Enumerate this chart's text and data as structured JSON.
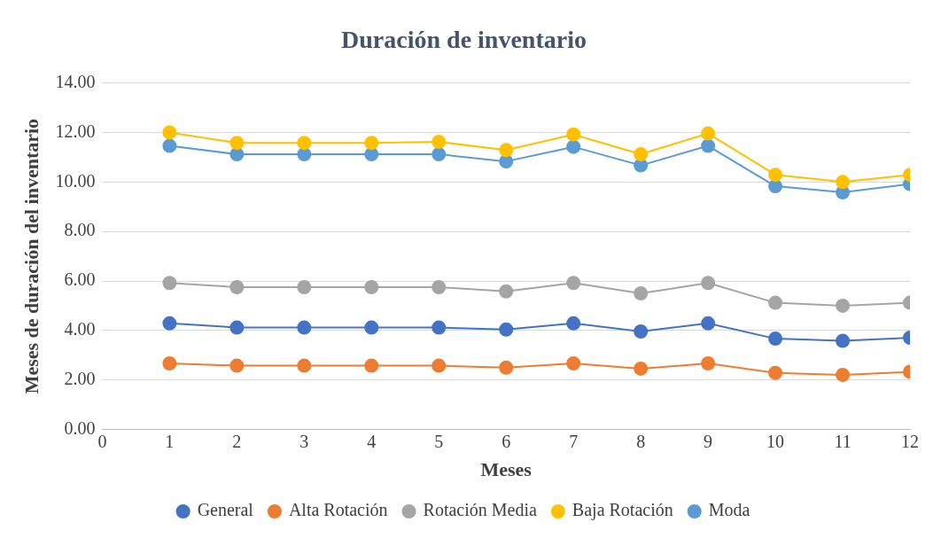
{
  "chart_data": {
    "type": "line",
    "title": "Duración de inventario",
    "xlabel": "Meses",
    "ylabel": "Meses de duración del inventario",
    "x": [
      1,
      2,
      3,
      4,
      5,
      6,
      7,
      8,
      9,
      10,
      11,
      12
    ],
    "series": [
      {
        "name": "General",
        "color": "#4472c4",
        "values": [
          4.29,
          4.12,
          4.12,
          4.12,
          4.12,
          4.04,
          4.29,
          3.96,
          4.29,
          3.67,
          3.58,
          3.71
        ]
      },
      {
        "name": "Alta Rotación",
        "color": "#ed7d31",
        "values": [
          2.67,
          2.58,
          2.58,
          2.58,
          2.58,
          2.5,
          2.67,
          2.46,
          2.67,
          2.29,
          2.21,
          2.33
        ]
      },
      {
        "name": "Rotación Media",
        "color": "#a5a5a5",
        "values": [
          5.92,
          5.75,
          5.75,
          5.75,
          5.75,
          5.58,
          5.92,
          5.5,
          5.92,
          5.12,
          5.0,
          5.12
        ]
      },
      {
        "name": "Baja Rotación",
        "color": "#ffc000",
        "values": [
          12.0,
          11.58,
          11.58,
          11.58,
          11.62,
          11.29,
          11.92,
          11.12,
          11.96,
          10.29,
          10.0,
          10.29
        ]
      },
      {
        "name": "Moda",
        "color": "#5b9bd5",
        "values": [
          11.46,
          11.12,
          11.12,
          11.12,
          11.12,
          10.83,
          11.42,
          10.67,
          11.46,
          9.83,
          9.58,
          9.92
        ]
      }
    ],
    "xlim": [
      0,
      12
    ],
    "xticks": [
      0,
      1,
      2,
      3,
      4,
      5,
      6,
      7,
      8,
      9,
      10,
      11,
      12
    ],
    "ylim": [
      0,
      14
    ],
    "yticks": [
      {
        "value": 0,
        "label": "0.00"
      },
      {
        "value": 2,
        "label": "2.00"
      },
      {
        "value": 4,
        "label": "4.00"
      },
      {
        "value": 6,
        "label": "6.00"
      },
      {
        "value": 8,
        "label": "8.00"
      },
      {
        "value": 10,
        "label": "10.00"
      },
      {
        "value": 12,
        "label": "12.00"
      },
      {
        "value": 14,
        "label": "14.00"
      }
    ],
    "grid": "y",
    "legend": "bottom",
    "marker": "circle",
    "line_style": "solid"
  }
}
